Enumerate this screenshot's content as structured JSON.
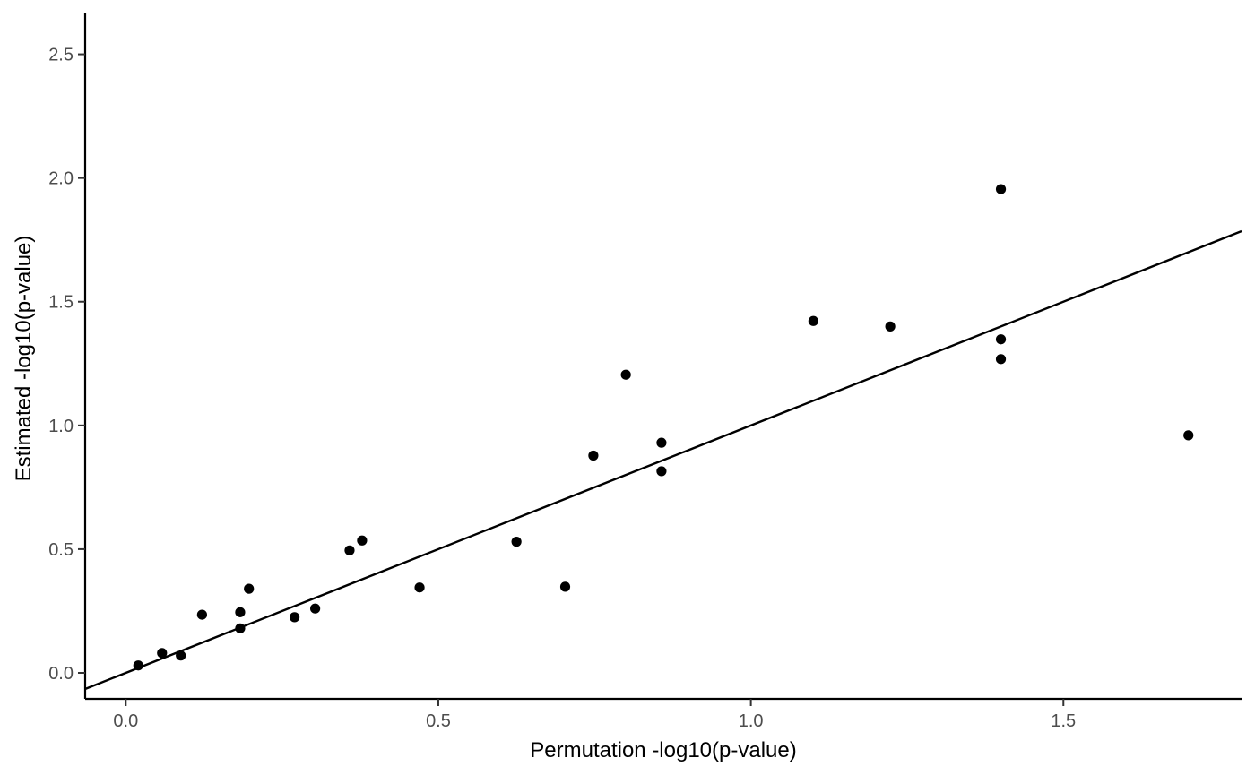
{
  "chart_data": {
    "type": "scatter",
    "xlabel": "Permutation -log10(p-value)",
    "ylabel": "Estimated -log10(p-value)",
    "xlim": [
      -0.065,
      1.785
    ],
    "ylim": [
      -0.105,
      2.665
    ],
    "x_ticks": [
      0.0,
      0.5,
      1.0,
      1.5
    ],
    "x_tick_labels": [
      "0.0",
      "0.5",
      "1.0",
      "1.5"
    ],
    "y_ticks": [
      0.0,
      0.5,
      1.0,
      1.5,
      2.0,
      2.5
    ],
    "y_tick_labels": [
      "0.0",
      "0.5",
      "1.0",
      "1.5",
      "2.0",
      "2.5"
    ],
    "grid": false,
    "reference_line": {
      "type": "identity",
      "slope": 1,
      "intercept": 0
    },
    "points": [
      {
        "x": 0.02,
        "y": 0.03
      },
      {
        "x": 0.058,
        "y": 0.08
      },
      {
        "x": 0.088,
        "y": 0.07
      },
      {
        "x": 0.122,
        "y": 0.235
      },
      {
        "x": 0.183,
        "y": 0.245
      },
      {
        "x": 0.183,
        "y": 0.18
      },
      {
        "x": 0.197,
        "y": 0.34
      },
      {
        "x": 0.27,
        "y": 0.225
      },
      {
        "x": 0.303,
        "y": 0.26
      },
      {
        "x": 0.358,
        "y": 0.495
      },
      {
        "x": 0.378,
        "y": 0.535
      },
      {
        "x": 0.47,
        "y": 0.345
      },
      {
        "x": 0.625,
        "y": 0.53
      },
      {
        "x": 0.703,
        "y": 0.348
      },
      {
        "x": 0.748,
        "y": 0.878
      },
      {
        "x": 0.8,
        "y": 1.205
      },
      {
        "x": 0.857,
        "y": 0.93
      },
      {
        "x": 0.857,
        "y": 0.815
      },
      {
        "x": 1.1,
        "y": 1.422
      },
      {
        "x": 1.223,
        "y": 1.4
      },
      {
        "x": 1.4,
        "y": 1.955
      },
      {
        "x": 1.4,
        "y": 1.348
      },
      {
        "x": 1.4,
        "y": 1.268
      },
      {
        "x": 1.7,
        "y": 0.96
      }
    ]
  }
}
